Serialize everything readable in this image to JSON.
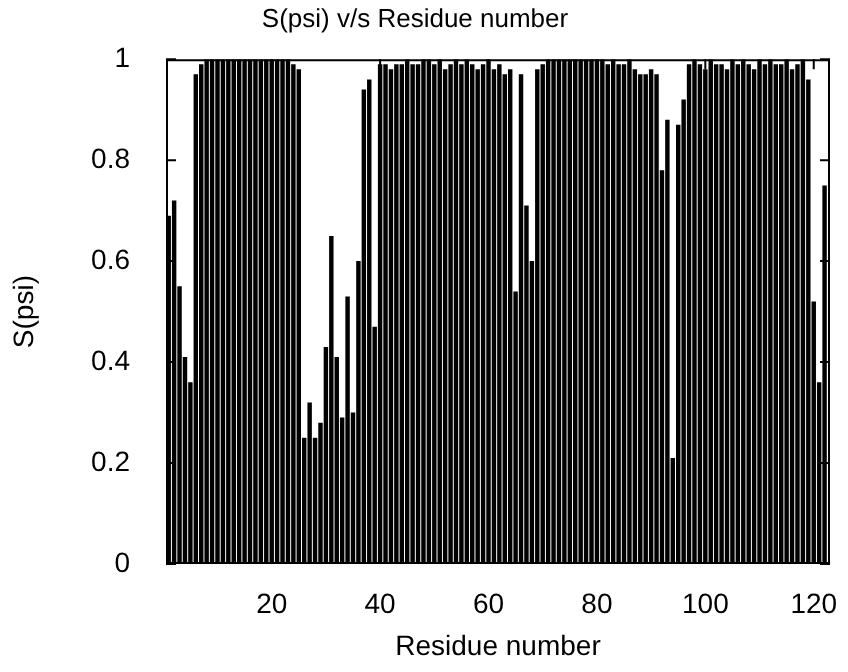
{
  "chart_data": {
    "type": "bar",
    "title": "S(psi) v/s Residue number",
    "xlabel": "Residue number",
    "ylabel": "S(psi)",
    "x": [
      1,
      2,
      3,
      4,
      5,
      6,
      7,
      8,
      9,
      10,
      11,
      12,
      13,
      14,
      15,
      16,
      17,
      18,
      19,
      20,
      21,
      22,
      23,
      24,
      25,
      26,
      27,
      28,
      29,
      30,
      31,
      32,
      33,
      34,
      35,
      36,
      37,
      38,
      39,
      40,
      41,
      42,
      43,
      44,
      45,
      46,
      47,
      48,
      49,
      50,
      51,
      52,
      53,
      54,
      55,
      56,
      57,
      58,
      59,
      60,
      61,
      62,
      63,
      64,
      65,
      66,
      67,
      68,
      69,
      70,
      71,
      72,
      73,
      74,
      75,
      76,
      77,
      78,
      79,
      80,
      81,
      82,
      83,
      84,
      85,
      86,
      87,
      88,
      89,
      90,
      91,
      92,
      93,
      94,
      95,
      96,
      97,
      98,
      99,
      100,
      101,
      102,
      103,
      104,
      105,
      106,
      107,
      108,
      109,
      110,
      111,
      112,
      113,
      114,
      115,
      116,
      117,
      118,
      119,
      120,
      121,
      122
    ],
    "values": [
      0.69,
      0.72,
      0.55,
      0.41,
      0.36,
      0.97,
      0.99,
      1,
      1,
      1,
      1,
      1,
      1,
      1,
      1,
      1,
      1,
      1,
      1,
      1,
      1,
      1,
      1,
      0.99,
      0.98,
      0.25,
      0.32,
      0.25,
      0.28,
      0.43,
      0.65,
      0.41,
      0.29,
      0.53,
      0.3,
      0.6,
      0.94,
      0.96,
      0.47,
      0.99,
      0.99,
      0.98,
      0.99,
      0.99,
      1,
      0.99,
      0.99,
      1,
      1,
      0.99,
      1,
      0.98,
      0.99,
      1,
      0.99,
      1,
      0.99,
      0.98,
      0.99,
      1,
      0.98,
      0.99,
      0.97,
      0.98,
      0.54,
      0.97,
      0.71,
      0.6,
      0.98,
      0.99,
      1,
      1,
      1,
      1,
      1,
      1,
      1,
      1,
      1,
      1,
      1,
      0.99,
      1,
      0.99,
      0.99,
      1,
      0.98,
      0.97,
      0.97,
      0.98,
      0.97,
      0.78,
      0.88,
      0.21,
      0.87,
      0.92,
      0.99,
      1,
      0.99,
      0.98,
      1,
      0.99,
      0.99,
      0.98,
      1,
      0.99,
      1,
      0.99,
      0.98,
      1,
      0.99,
      1,
      0.99,
      0.99,
      1,
      0.98,
      0.99,
      1,
      0.96,
      0.52,
      0.36,
      0.75
    ],
    "color": "#000000",
    "xlim": [
      0.5,
      123
    ],
    "xticks": [
      20,
      40,
      60,
      80,
      100,
      120
    ],
    "ylim": [
      0,
      1
    ],
    "yticks": [
      0,
      0.2,
      0.4,
      0.6,
      0.8,
      1
    ],
    "legend": false
  }
}
